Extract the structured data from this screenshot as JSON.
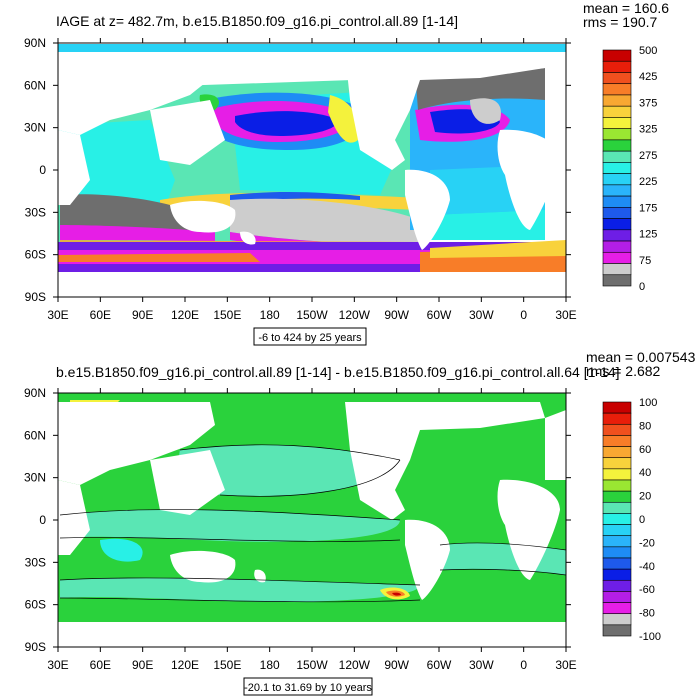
{
  "panels": [
    {
      "id": "top",
      "title": "IAGE at z= 482.7m, b.e15.B1850.f09_g16.pi_control.all.89 [1-14]",
      "stats": {
        "mean": "mean = 160.6",
        "rms": "rms = 190.7"
      },
      "range_note": "-6 to 424 by 25 years",
      "x_ticks": [
        "30E",
        "60E",
        "90E",
        "120E",
        "150E",
        "180",
        "150W",
        "120W",
        "90W",
        "60W",
        "30W",
        "0",
        "30E"
      ],
      "y_ticks": [
        "90N",
        "60N",
        "30N",
        "0",
        "30S",
        "60S",
        "90S"
      ],
      "colorbar": {
        "labels": [
          "500",
          "425",
          "375",
          "325",
          "275",
          "225",
          "175",
          "125",
          "75",
          "0"
        ],
        "colors": [
          "#c80000",
          "#e81e0a",
          "#f0501e",
          "#f87d28",
          "#f8a832",
          "#f8d23c",
          "#f4f23c",
          "#9ae632",
          "#2ad23c",
          "#5ae6b4",
          "#28f0e6",
          "#28d2f5",
          "#2ab4fa",
          "#1e8cf5",
          "#1e5aeb",
          "#0a1ee6",
          "#6e1ee6",
          "#b41ee6",
          "#e61ee6",
          "#cdcdcd",
          "#6e6e6e"
        ]
      }
    },
    {
      "id": "bottom",
      "title": "b.e15.B1850.f09_g16.pi_control.all.89 [1-14] - b.e15.B1850.f09_g16.pi_control.all.64 [1-14]",
      "stats": {
        "mean": "mean = 0.007543",
        "rms": "rms = 2.682"
      },
      "range_note": "-20.1 to 31.69 by 10 years",
      "x_ticks": [
        "30E",
        "60E",
        "90E",
        "120E",
        "150E",
        "180",
        "150W",
        "120W",
        "90W",
        "60W",
        "30W",
        "0",
        "30E"
      ],
      "y_ticks": [
        "90N",
        "60N",
        "30N",
        "0",
        "30S",
        "60S",
        "90S"
      ],
      "colorbar": {
        "labels": [
          "100",
          "80",
          "60",
          "40",
          "20",
          "0",
          "-20",
          "-40",
          "-60",
          "-80",
          "-100"
        ],
        "colors": [
          "#c80000",
          "#e81e0a",
          "#f0501e",
          "#f87d28",
          "#f8a832",
          "#f8d23c",
          "#f4f23c",
          "#9ae632",
          "#2ad23c",
          "#5ae6b4",
          "#28f0e6",
          "#28d2f5",
          "#2ab4fa",
          "#1e8cf5",
          "#1e5aeb",
          "#0a1ee6",
          "#6e1ee6",
          "#b41ee6",
          "#e61ee6",
          "#cdcdcd",
          "#6e6e6e"
        ]
      }
    }
  ]
}
